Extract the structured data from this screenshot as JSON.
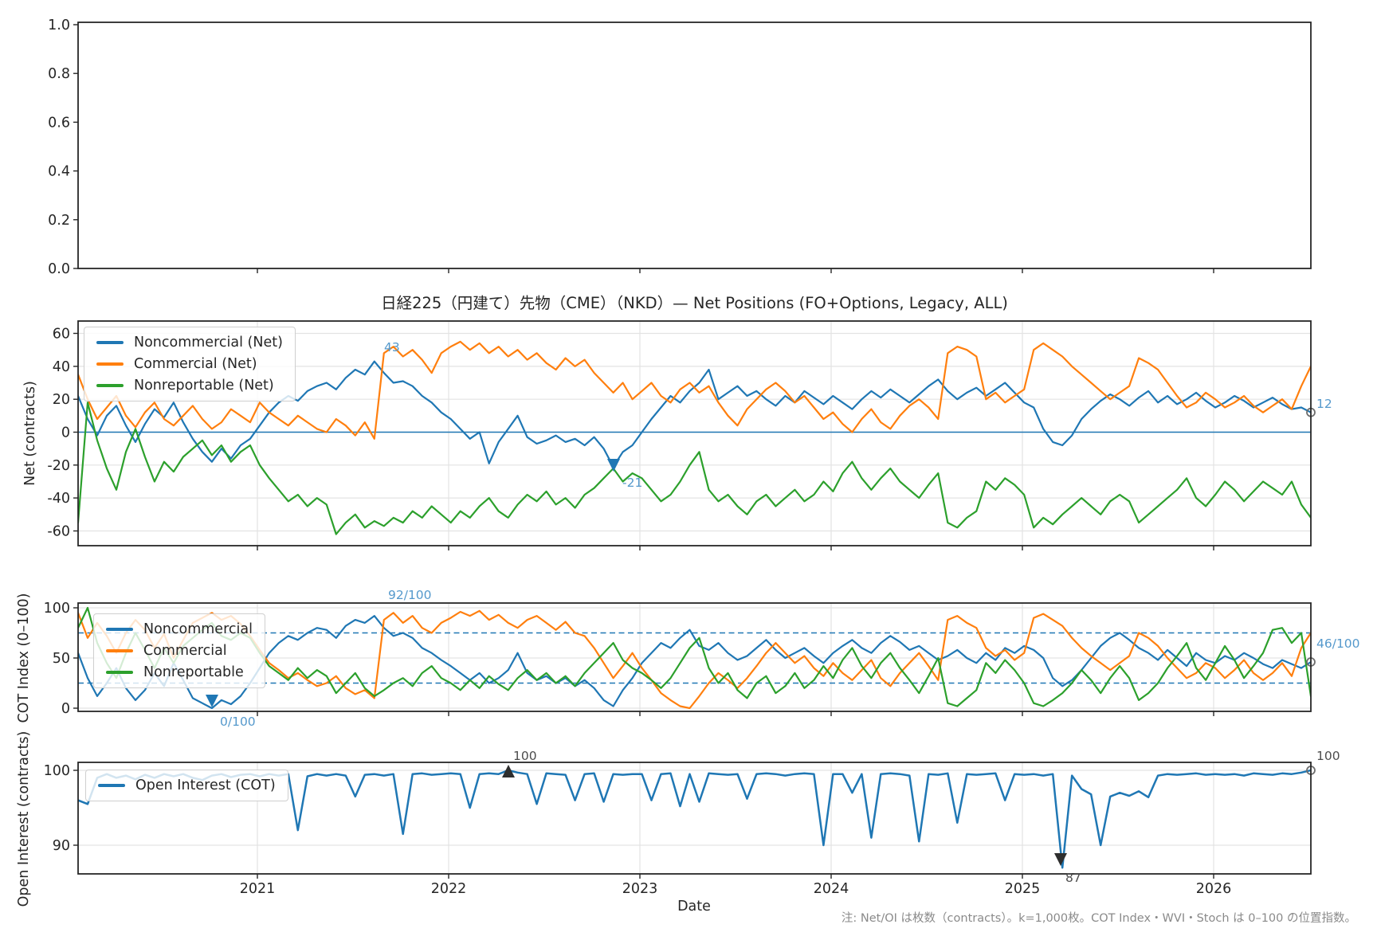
{
  "title": "日経225（円建て）先物（CME）（NKD）— Net Positions (FO+Options, Legacy, ALL)",
  "xlabel": "Date",
  "note": "注: Net/OI は枚数（contracts）。k=1,000枚。COT Index・WVI・Stoch は 0–100 の位置指数。",
  "colors": {
    "noncommercial": "#1f77b4",
    "commercial": "#ff7f0e",
    "nonreportable": "#2ca02c",
    "oi_line": "#1f77b4",
    "zero_line": "#1f77b4",
    "ref_dashed": "#1f77b4",
    "annotation_blue": "#5599cc",
    "annotation_dark": "#4d4d4d",
    "marker_dark": "#2e2e2e",
    "grid": "#e3e3e3",
    "spine": "#262626"
  },
  "ylabels": {
    "net": "Net (contracts)",
    "index": "COT Index (0–100)",
    "oi": "Open Interest (contracts)"
  },
  "legend": {
    "net": [
      "Noncommercial (Net)",
      "Commercial (Net)",
      "Nonreportable (Net)"
    ],
    "index": [
      "Noncommercial",
      "Commercial",
      "Nonreportable"
    ],
    "oi": [
      "Open Interest (COT)"
    ]
  },
  "annotations": {
    "net_max": "43",
    "net_min": "-21",
    "net_last": "12",
    "index_max": "92/100",
    "index_min": "0/100",
    "index_last": "46/100",
    "oi_max": "100",
    "oi_min": "87",
    "oi_last": "100"
  },
  "axes": {
    "x_tick_labels": [
      "2021",
      "2022",
      "2023",
      "2024",
      "2025",
      "2026"
    ],
    "top_panel_yticks": [
      "1.0",
      "0.8",
      "0.6",
      "0.4",
      "0.2",
      "0.0"
    ],
    "net_yticks": [
      "60",
      "40",
      "20",
      "0",
      "-20",
      "-40",
      "-60"
    ],
    "index_yticks": [
      "100",
      "50",
      "0"
    ],
    "oi_yticks": [
      "100",
      "90"
    ]
  },
  "chart_data": [
    {
      "id": "top_panel",
      "type": "empty",
      "yticks": [
        1.0,
        0.8,
        0.6,
        0.4,
        0.2,
        0.0
      ],
      "series": [],
      "grid": false
    },
    {
      "id": "net_positions",
      "type": "line",
      "title": "日経225（円建て）先物（CME）（NKD）— Net Positions (FO+Options, Legacy, ALL)",
      "ylabel": "Net (contracts)",
      "ylim": [
        -69,
        67
      ],
      "yticks": [
        60,
        40,
        20,
        0,
        -20,
        -40,
        -60
      ],
      "x_range_years": [
        2020.1,
        2026.45
      ],
      "x_year_ticks": [
        2021,
        2022,
        2023,
        2024,
        2025,
        2026
      ],
      "zero_line": 0,
      "grid": true,
      "legend_position": "upper left",
      "callouts": {
        "max": 43,
        "min": -21,
        "last": 12
      },
      "series": [
        {
          "name": "Noncommercial (Net)",
          "values": [
            22,
            8,
            -2,
            10,
            16,
            4,
            -6,
            5,
            14,
            9,
            18,
            6,
            -4,
            -12,
            -18,
            -10,
            -16,
            -8,
            -4,
            4,
            12,
            18,
            22,
            19,
            25,
            28,
            30,
            26,
            33,
            38,
            35,
            43,
            36,
            30,
            31,
            28,
            22,
            18,
            12,
            8,
            2,
            -4,
            0,
            -19,
            -6,
            2,
            10,
            -3,
            -7,
            -5,
            -2,
            -6,
            -4,
            -8,
            -3,
            -10,
            -21,
            -12,
            -8,
            0,
            8,
            15,
            22,
            18,
            25,
            30,
            38,
            20,
            24,
            28,
            22,
            25,
            20,
            16,
            22,
            18,
            25,
            21,
            17,
            22,
            18,
            14,
            20,
            25,
            21,
            26,
            22,
            18,
            23,
            28,
            32,
            25,
            20,
            24,
            27,
            22,
            26,
            30,
            24,
            18,
            15,
            2,
            -6,
            -8,
            -2,
            8,
            14,
            19,
            23,
            20,
            16,
            21,
            25,
            18,
            22,
            17,
            20,
            24,
            19,
            15,
            18,
            22,
            19,
            15,
            18,
            21,
            17,
            14,
            15,
            12
          ]
        },
        {
          "name": "Commercial (Net)",
          "values": [
            35,
            20,
            8,
            15,
            22,
            10,
            3,
            12,
            18,
            8,
            4,
            10,
            16,
            8,
            2,
            6,
            14,
            10,
            6,
            18,
            12,
            8,
            4,
            10,
            6,
            2,
            0,
            8,
            4,
            -2,
            6,
            -4,
            48,
            52,
            46,
            50,
            44,
            36,
            48,
            52,
            55,
            50,
            54,
            48,
            52,
            46,
            50,
            44,
            48,
            42,
            38,
            45,
            40,
            44,
            36,
            30,
            24,
            30,
            20,
            25,
            30,
            22,
            18,
            26,
            30,
            24,
            28,
            18,
            10,
            4,
            14,
            20,
            26,
            30,
            25,
            18,
            22,
            15,
            8,
            12,
            5,
            0,
            8,
            14,
            6,
            2,
            10,
            16,
            20,
            15,
            8,
            48,
            52,
            50,
            46,
            20,
            24,
            18,
            22,
            26,
            50,
            54,
            50,
            46,
            40,
            35,
            30,
            25,
            20,
            24,
            28,
            45,
            42,
            38,
            30,
            22,
            15,
            18,
            24,
            20,
            15,
            18,
            22,
            16,
            12,
            16,
            20,
            14,
            28,
            40
          ]
        },
        {
          "name": "Nonreportable (Net)",
          "values": [
            -55,
            18,
            -5,
            -22,
            -35,
            -12,
            2,
            -15,
            -30,
            -18,
            -24,
            -15,
            -10,
            -5,
            -14,
            -8,
            -18,
            -12,
            -8,
            -20,
            -28,
            -35,
            -42,
            -38,
            -45,
            -40,
            -44,
            -62,
            -55,
            -50,
            -58,
            -54,
            -57,
            -52,
            -55,
            -48,
            -52,
            -45,
            -50,
            -55,
            -48,
            -52,
            -45,
            -40,
            -48,
            -52,
            -44,
            -38,
            -42,
            -36,
            -44,
            -40,
            -46,
            -38,
            -34,
            -28,
            -22,
            -30,
            -25,
            -28,
            -35,
            -42,
            -38,
            -30,
            -20,
            -12,
            -35,
            -42,
            -38,
            -45,
            -50,
            -42,
            -38,
            -45,
            -40,
            -35,
            -42,
            -38,
            -30,
            -36,
            -25,
            -18,
            -28,
            -35,
            -28,
            -22,
            -30,
            -35,
            -40,
            -32,
            -25,
            -55,
            -58,
            -52,
            -48,
            -30,
            -35,
            -28,
            -32,
            -38,
            -58,
            -52,
            -56,
            -50,
            -45,
            -40,
            -45,
            -50,
            -42,
            -38,
            -42,
            -55,
            -50,
            -45,
            -40,
            -35,
            -28,
            -40,
            -45,
            -38,
            -30,
            -35,
            -42,
            -36,
            -30,
            -34,
            -38,
            -30,
            -44,
            -52
          ]
        }
      ]
    },
    {
      "id": "cot_index",
      "type": "line",
      "ylabel": "COT Index (0–100)",
      "ylim": [
        -3,
        105
      ],
      "yticks": [
        100,
        50,
        0
      ],
      "ref_lines": [
        75,
        25
      ],
      "grid": true,
      "legend_position": "upper left",
      "callouts": {
        "max": 92,
        "min": 0,
        "last": 46
      },
      "series": [
        {
          "name": "Noncommercial",
          "values": [
            55,
            30,
            12,
            25,
            40,
            20,
            8,
            18,
            35,
            22,
            45,
            28,
            10,
            5,
            0,
            8,
            4,
            12,
            25,
            40,
            55,
            65,
            72,
            68,
            75,
            80,
            78,
            70,
            82,
            88,
            85,
            92,
            80,
            72,
            75,
            70,
            60,
            55,
            48,
            42,
            35,
            28,
            35,
            25,
            30,
            38,
            55,
            35,
            28,
            32,
            25,
            30,
            22,
            28,
            20,
            8,
            2,
            18,
            30,
            45,
            55,
            65,
            60,
            70,
            78,
            62,
            58,
            65,
            55,
            48,
            52,
            60,
            68,
            58,
            50,
            55,
            60,
            52,
            45,
            55,
            62,
            68,
            60,
            55,
            65,
            72,
            66,
            58,
            62,
            55,
            48,
            52,
            58,
            50,
            45,
            55,
            48,
            60,
            55,
            62,
            58,
            50,
            30,
            22,
            28,
            38,
            50,
            62,
            70,
            75,
            68,
            60,
            55,
            48,
            58,
            50,
            42,
            55,
            48,
            45,
            52,
            48,
            55,
            50,
            44,
            40,
            48,
            44,
            40,
            46
          ]
        },
        {
          "name": "Commercial",
          "values": [
            95,
            70,
            85,
            72,
            55,
            75,
            88,
            78,
            60,
            74,
            50,
            68,
            85,
            90,
            95,
            88,
            92,
            84,
            72,
            58,
            45,
            38,
            30,
            35,
            28,
            22,
            25,
            32,
            20,
            14,
            18,
            10,
            88,
            95,
            85,
            92,
            80,
            75,
            85,
            90,
            96,
            92,
            97,
            88,
            93,
            85,
            80,
            88,
            92,
            85,
            78,
            86,
            75,
            72,
            60,
            45,
            30,
            42,
            55,
            40,
            28,
            15,
            8,
            2,
            0,
            12,
            25,
            35,
            28,
            20,
            30,
            42,
            55,
            65,
            55,
            45,
            52,
            40,
            32,
            45,
            35,
            28,
            38,
            48,
            30,
            22,
            35,
            45,
            55,
            42,
            28,
            88,
            92,
            85,
            80,
            60,
            52,
            58,
            48,
            55,
            90,
            94,
            88,
            82,
            70,
            60,
            52,
            45,
            38,
            45,
            52,
            75,
            70,
            62,
            50,
            40,
            30,
            35,
            45,
            40,
            30,
            38,
            48,
            35,
            28,
            35,
            45,
            32,
            60,
            75
          ]
        },
        {
          "name": "Nonreportable",
          "values": [
            80,
            100,
            65,
            45,
            30,
            55,
            75,
            58,
            40,
            60,
            45,
            62,
            70,
            78,
            85,
            72,
            68,
            75,
            70,
            55,
            42,
            35,
            28,
            40,
            30,
            38,
            32,
            15,
            25,
            35,
            20,
            12,
            18,
            25,
            30,
            22,
            35,
            42,
            30,
            25,
            18,
            28,
            20,
            32,
            24,
            18,
            30,
            38,
            28,
            35,
            25,
            32,
            22,
            35,
            45,
            55,
            65,
            48,
            40,
            35,
            28,
            20,
            30,
            45,
            60,
            70,
            40,
            25,
            35,
            18,
            10,
            25,
            32,
            15,
            22,
            35,
            20,
            28,
            42,
            30,
            48,
            60,
            42,
            30,
            45,
            55,
            40,
            28,
            15,
            32,
            50,
            5,
            2,
            10,
            18,
            45,
            35,
            48,
            38,
            25,
            5,
            2,
            8,
            15,
            25,
            38,
            28,
            15,
            30,
            42,
            30,
            8,
            15,
            25,
            40,
            52,
            65,
            40,
            28,
            45,
            62,
            48,
            30,
            42,
            55,
            78,
            80,
            65,
            75,
            12
          ]
        }
      ]
    },
    {
      "id": "open_interest",
      "type": "line",
      "ylabel": "Open Interest (contracts)",
      "ylim": [
        86.2,
        101.1
      ],
      "yticks": [
        100,
        90
      ],
      "grid": true,
      "legend_position": "upper left",
      "callouts": {
        "max": 100,
        "min": 87,
        "last": 100
      },
      "series": [
        {
          "name": "Open Interest (COT)",
          "values": [
            96,
            95.5,
            99,
            99.5,
            99,
            99.3,
            98.8,
            99.4,
            99,
            99.5,
            99.2,
            99.5,
            99,
            98.7,
            99.3,
            99.5,
            99.1,
            99.4,
            99.5,
            99.2,
            99.5,
            99.3,
            99.5,
            92,
            99.2,
            99.5,
            99.3,
            99.5,
            99.3,
            96.5,
            99.4,
            99.5,
            99.3,
            99.5,
            91.5,
            99.5,
            99.6,
            99.4,
            99.5,
            99.6,
            99.5,
            95,
            99.5,
            99.6,
            99.5,
            100,
            99.7,
            99.5,
            95.5,
            99.6,
            99.5,
            99.4,
            96,
            99.5,
            99.6,
            95.8,
            99.5,
            99.4,
            99.5,
            99.5,
            96,
            99.5,
            99.6,
            95.2,
            99.5,
            95.8,
            99.6,
            99.5,
            99.4,
            99.5,
            96.2,
            99.5,
            99.6,
            99.5,
            99.3,
            99.5,
            99.6,
            99.5,
            90,
            99.5,
            99.5,
            97,
            99.5,
            91,
            99.5,
            99.6,
            99.5,
            99.3,
            90.5,
            99.5,
            99.4,
            99.6,
            93,
            99.5,
            99.4,
            99.5,
            99.6,
            96,
            99.5,
            99.4,
            99.5,
            99.3,
            99.5,
            87,
            99.3,
            97.5,
            96.8,
            90,
            96.5,
            97,
            96.6,
            97.2,
            96.4,
            99.3,
            99.5,
            99.4,
            99.5,
            99.6,
            99.4,
            99.5,
            99.4,
            99.5,
            99.3,
            99.6,
            99.5,
            99.4,
            99.6,
            99.5,
            99.7,
            100
          ]
        }
      ]
    }
  ]
}
